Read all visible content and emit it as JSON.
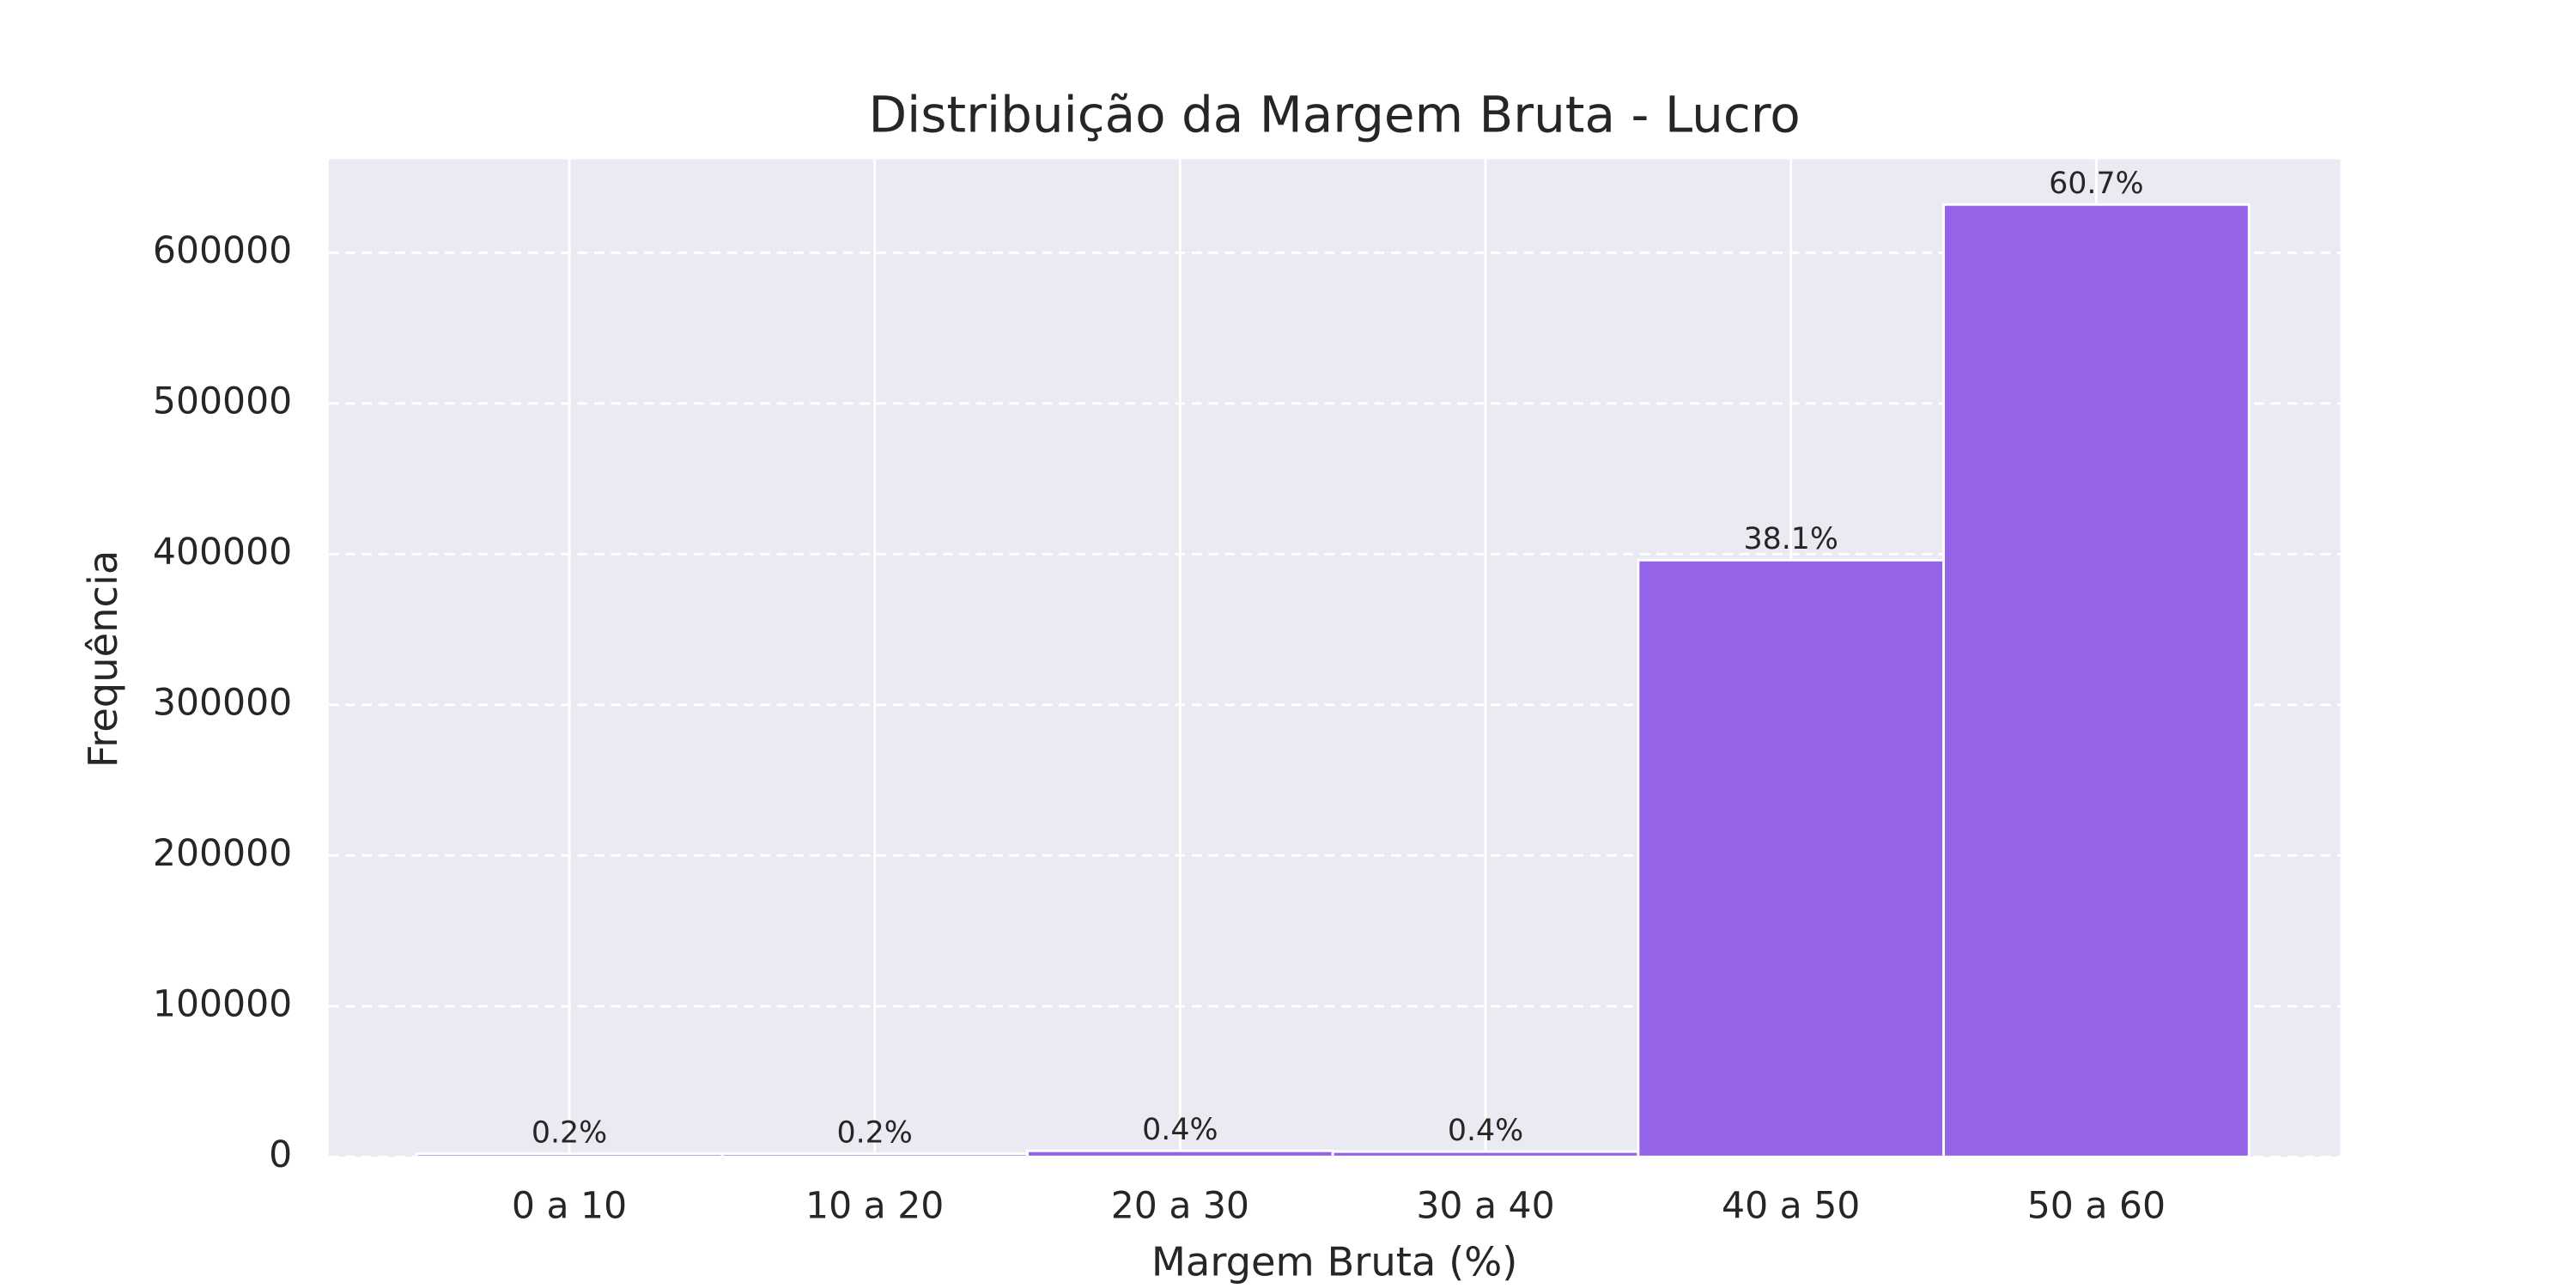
{
  "chart_data": {
    "type": "bar",
    "title": "Distribuição da Margem Bruta - Lucro",
    "x_label": "Margem Bruta (%)",
    "y_label": "Frequência",
    "categories": [
      "0 a 10",
      "10 a 20",
      "20 a 30",
      "30 a 40",
      "40 a 50",
      "50 a 60"
    ],
    "values": [
      2000,
      2000,
      4000,
      3500,
      396000,
      632000
    ],
    "percent_labels": [
      "0.2%",
      "0.2%",
      "0.4%",
      "0.4%",
      "38.1%",
      "60.7%"
    ],
    "color": "#9360e8",
    "ylim": [
      0,
      662000
    ],
    "yticks": [
      0,
      100000,
      200000,
      300000,
      400000,
      500000,
      600000
    ],
    "grid": true
  }
}
